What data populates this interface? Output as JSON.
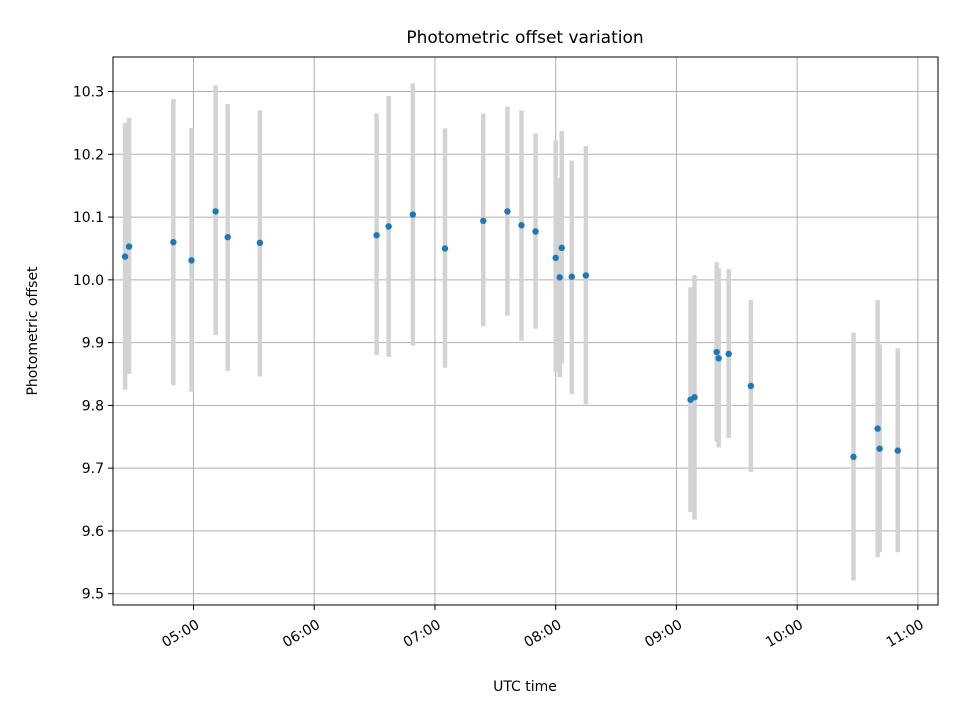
{
  "chart_data": {
    "type": "scatter",
    "title": "Photometric offset variation",
    "xlabel": "UTC time",
    "ylabel": "Photometric offset",
    "x_is_time": true,
    "xlim": [
      "04:20",
      "11:10"
    ],
    "ylim": [
      9.482,
      10.355
    ],
    "xticks": [
      "05:00",
      "06:00",
      "07:00",
      "08:00",
      "09:00",
      "10:00",
      "11:00"
    ],
    "yticks": [
      "9.5",
      "9.6",
      "9.7",
      "9.8",
      "9.9",
      "10.0",
      "10.1",
      "10.2",
      "10.3"
    ],
    "grid": true,
    "legend": "none",
    "point_color": "#1f77b4",
    "errorbar_color": "#d3d3d3",
    "points": [
      {
        "time": "04:26",
        "y": 10.037,
        "ylow": 9.825,
        "yhigh": 10.25
      },
      {
        "time": "04:28",
        "y": 10.053,
        "ylow": 9.85,
        "yhigh": 10.258
      },
      {
        "time": "04:50",
        "y": 10.06,
        "ylow": 9.832,
        "yhigh": 10.288
      },
      {
        "time": "04:59",
        "y": 10.031,
        "ylow": 9.822,
        "yhigh": 10.242
      },
      {
        "time": "05:11",
        "y": 10.109,
        "ylow": 9.912,
        "yhigh": 10.31
      },
      {
        "time": "05:17",
        "y": 10.068,
        "ylow": 9.855,
        "yhigh": 10.28
      },
      {
        "time": "05:33",
        "y": 10.059,
        "ylow": 9.846,
        "yhigh": 10.27
      },
      {
        "time": "06:31",
        "y": 10.071,
        "ylow": 9.88,
        "yhigh": 10.265
      },
      {
        "time": "06:37",
        "y": 10.085,
        "ylow": 9.877,
        "yhigh": 10.293
      },
      {
        "time": "06:49",
        "y": 10.104,
        "ylow": 9.895,
        "yhigh": 10.313
      },
      {
        "time": "07:05",
        "y": 10.05,
        "ylow": 9.86,
        "yhigh": 10.241
      },
      {
        "time": "07:24",
        "y": 10.094,
        "ylow": 9.926,
        "yhigh": 10.265
      },
      {
        "time": "07:36",
        "y": 10.109,
        "ylow": 9.943,
        "yhigh": 10.276
      },
      {
        "time": "07:43",
        "y": 10.087,
        "ylow": 9.903,
        "yhigh": 10.27
      },
      {
        "time": "07:50",
        "y": 10.077,
        "ylow": 9.922,
        "yhigh": 10.233
      },
      {
        "time": "08:00",
        "y": 10.035,
        "ylow": 9.853,
        "yhigh": 10.222
      },
      {
        "time": "08:02",
        "y": 10.004,
        "ylow": 9.845,
        "yhigh": 10.162
      },
      {
        "time": "08:03",
        "y": 10.051,
        "ylow": 9.867,
        "yhigh": 10.237
      },
      {
        "time": "08:08",
        "y": 10.005,
        "ylow": 9.818,
        "yhigh": 10.19
      },
      {
        "time": "08:15",
        "y": 10.007,
        "ylow": 9.802,
        "yhigh": 10.213
      },
      {
        "time": "09:07",
        "y": 9.809,
        "ylow": 9.63,
        "yhigh": 9.988
      },
      {
        "time": "09:09",
        "y": 9.813,
        "ylow": 9.618,
        "yhigh": 10.008
      },
      {
        "time": "09:20",
        "y": 9.885,
        "ylow": 9.742,
        "yhigh": 10.028
      },
      {
        "time": "09:21",
        "y": 9.875,
        "ylow": 9.733,
        "yhigh": 10.018
      },
      {
        "time": "09:26",
        "y": 9.882,
        "ylow": 9.748,
        "yhigh": 10.017
      },
      {
        "time": "09:37",
        "y": 9.831,
        "ylow": 9.694,
        "yhigh": 9.968
      },
      {
        "time": "10:28",
        "y": 9.718,
        "ylow": 9.521,
        "yhigh": 9.916
      },
      {
        "time": "10:40",
        "y": 9.763,
        "ylow": 9.558,
        "yhigh": 9.968
      },
      {
        "time": "10:41",
        "y": 9.731,
        "ylow": 9.566,
        "yhigh": 9.897
      },
      {
        "time": "10:50",
        "y": 9.728,
        "ylow": 9.566,
        "yhigh": 9.891
      }
    ]
  }
}
